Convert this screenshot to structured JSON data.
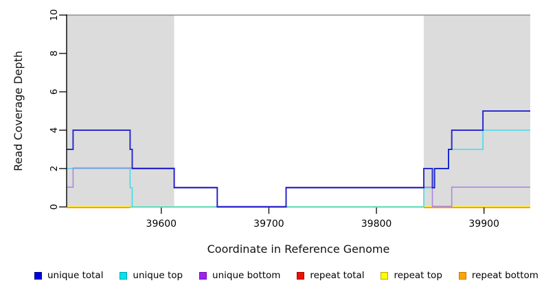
{
  "axes": {
    "x_title": "Coordinate in Reference Genome",
    "y_title": "Read Coverage Depth"
  },
  "chart_data": {
    "type": "line",
    "subtype": "step-coverage-plot",
    "title": "",
    "xlabel": "Coordinate in Reference Genome",
    "ylabel": "Read Coverage Depth",
    "xlim": [
      39512,
      39943
    ],
    "ylim": [
      0,
      10
    ],
    "x_ticks": [
      39600,
      39700,
      39800,
      39900
    ],
    "y_ticks": [
      0,
      2,
      4,
      6,
      8,
      10
    ],
    "grid": false,
    "legend_position": "bottom",
    "plot_border_top_color": "#8e8e8e",
    "shaded_regions": [
      {
        "from": 39512,
        "to": 39612,
        "color": "#DCDCDC"
      },
      {
        "from": 39844,
        "to": 39943,
        "color": "#DCDCDC"
      }
    ],
    "series": [
      {
        "name": "repeat total",
        "color": "#E81010",
        "points": [
          [
            39512,
            0
          ],
          [
            39943,
            0
          ]
        ]
      },
      {
        "name": "repeat top",
        "color": "#FFFF33",
        "points": [
          [
            39512,
            0
          ],
          [
            39943,
            0
          ]
        ]
      },
      {
        "name": "repeat top + unique top overlap",
        "color": "#7FC98A",
        "points": [
          [
            39571,
            0
          ],
          [
            39844,
            0
          ]
        ]
      },
      {
        "name": "repeat bottom",
        "color": "#FF9100",
        "segments": [
          [
            [
              39512,
              0
            ],
            [
              39571,
              0
            ]
          ],
          [
            [
              39844,
              0
            ],
            [
              39943,
              0
            ]
          ]
        ]
      },
      {
        "name": "unique top",
        "color": "#40DCE8",
        "points": [
          [
            39512,
            2
          ],
          [
            39571,
            2
          ],
          [
            39571,
            1
          ],
          [
            39573,
            1
          ],
          [
            39573,
            0
          ],
          [
            39844,
            0
          ],
          [
            39844,
            1
          ],
          [
            39854,
            1
          ],
          [
            39854,
            2
          ],
          [
            39867,
            2
          ],
          [
            39867,
            3
          ],
          [
            39899,
            3
          ],
          [
            39899,
            4
          ],
          [
            39943,
            4
          ]
        ]
      },
      {
        "name": "unique bottom",
        "color": "#A97FE0",
        "points": [
          [
            39512,
            1
          ],
          [
            39518,
            1
          ],
          [
            39518,
            2
          ],
          [
            39612,
            2
          ],
          [
            39612,
            1
          ],
          [
            39652,
            1
          ],
          [
            39652,
            0
          ],
          [
            39716,
            0
          ],
          [
            39716,
            1
          ],
          [
            39852,
            1
          ],
          [
            39852,
            0
          ],
          [
            39870,
            0
          ],
          [
            39870,
            1
          ],
          [
            39943,
            1
          ]
        ]
      },
      {
        "name": "unique total",
        "color": "#0D0DC8",
        "points": [
          [
            39512,
            3
          ],
          [
            39518,
            3
          ],
          [
            39518,
            4
          ],
          [
            39571,
            4
          ],
          [
            39571,
            3
          ],
          [
            39573,
            3
          ],
          [
            39573,
            2
          ],
          [
            39612,
            2
          ],
          [
            39612,
            1
          ],
          [
            39652,
            1
          ],
          [
            39652,
            0
          ],
          [
            39716,
            0
          ],
          [
            39716,
            1
          ],
          [
            39844,
            1
          ],
          [
            39844,
            2
          ],
          [
            39852,
            2
          ],
          [
            39852,
            1
          ],
          [
            39854,
            1
          ],
          [
            39854,
            2
          ],
          [
            39867,
            2
          ],
          [
            39867,
            3
          ],
          [
            39870,
            3
          ],
          [
            39870,
            4
          ],
          [
            39899,
            4
          ],
          [
            39899,
            5
          ],
          [
            39943,
            5
          ]
        ]
      }
    ]
  },
  "legend": {
    "items": [
      {
        "label": "unique total",
        "fill": "#0000E0",
        "border": "#000090"
      },
      {
        "label": "unique top",
        "fill": "#00E5EE",
        "border": "#00A0B0"
      },
      {
        "label": "unique bottom",
        "fill": "#A021F0",
        "border": "#6F10B0"
      },
      {
        "label": "repeat total",
        "fill": "#EE1100",
        "border": "#A00000"
      },
      {
        "label": "repeat top",
        "fill": "#FFFF00",
        "border": "#B8A800"
      },
      {
        "label": "repeat bottom",
        "fill": "#FFA500",
        "border": "#BF7800"
      }
    ]
  }
}
